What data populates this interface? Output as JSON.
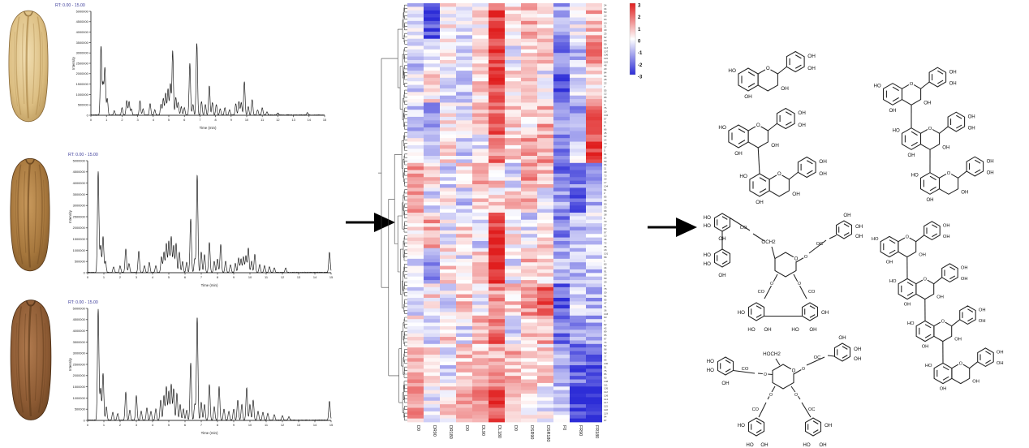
{
  "kernels": [
    {
      "label": "light-pecan-kernel",
      "base": "#f0ddb0",
      "mid": "#dcbe82",
      "dark": "#b08c4f",
      "edge": "#8a6a38"
    },
    {
      "label": "medium-pecan-kernel",
      "base": "#c99a5d",
      "mid": "#a5763c",
      "dark": "#7a5226",
      "edge": "#5d3d1c"
    },
    {
      "label": "dark-pecan-kernel",
      "base": "#b07a4e",
      "mid": "#8c5a33",
      "dark": "#66401f",
      "edge": "#4d2f16"
    }
  ],
  "arrows": {
    "color": "#000000"
  },
  "chem": {
    "labels": {
      "oh": "OH",
      "ho": "HO",
      "o": "O",
      "co": "CO",
      "oc": "OC",
      "och2": "OCH2",
      "hoch2": "HOCH2"
    }
  },
  "chart_data": [
    {
      "type": "line",
      "panel": "chromatogram-1",
      "title": "RT: 0.00 - 15.00",
      "xlabel": "Time (min)",
      "ylabel": "Intensity",
      "xlim": [
        0,
        15
      ],
      "ylim": [
        0,
        5000000
      ],
      "y_ticks": [
        0,
        500000,
        1000000,
        1500000,
        2000000,
        2500000,
        3000000,
        3500000,
        4000000,
        4500000,
        5000000
      ],
      "x_ticks": [
        0,
        1,
        2,
        3,
        4,
        5,
        6,
        7,
        8,
        9,
        10,
        11,
        12,
        13,
        14,
        15
      ],
      "peaks": [
        [
          0.65,
          3300000
        ],
        [
          0.78,
          1500000
        ],
        [
          0.9,
          2250000
        ],
        [
          1.05,
          800000
        ],
        [
          1.5,
          200000
        ],
        [
          2.0,
          350000
        ],
        [
          2.3,
          700000
        ],
        [
          2.45,
          650000
        ],
        [
          2.6,
          300000
        ],
        [
          3.15,
          680000
        ],
        [
          3.35,
          300000
        ],
        [
          3.8,
          550000
        ],
        [
          4.1,
          250000
        ],
        [
          4.5,
          520000
        ],
        [
          4.65,
          800000
        ],
        [
          4.8,
          1050000
        ],
        [
          4.95,
          1250000
        ],
        [
          5.1,
          1500000
        ],
        [
          5.25,
          3100000
        ],
        [
          5.45,
          850000
        ],
        [
          5.6,
          600000
        ],
        [
          5.8,
          400000
        ],
        [
          6.0,
          350000
        ],
        [
          6.35,
          2500000
        ],
        [
          6.55,
          500000
        ],
        [
          6.8,
          3450000
        ],
        [
          7.1,
          650000
        ],
        [
          7.35,
          500000
        ],
        [
          7.6,
          1400000
        ],
        [
          7.8,
          600000
        ],
        [
          8.05,
          500000
        ],
        [
          8.3,
          300000
        ],
        [
          8.6,
          350000
        ],
        [
          8.9,
          250000
        ],
        [
          9.3,
          550000
        ],
        [
          9.5,
          650000
        ],
        [
          9.65,
          600000
        ],
        [
          9.85,
          1600000
        ],
        [
          10.1,
          400000
        ],
        [
          10.35,
          750000
        ],
        [
          10.7,
          250000
        ],
        [
          11.0,
          350000
        ],
        [
          11.3,
          150000
        ],
        [
          12.0,
          100000
        ],
        [
          13.9,
          120000
        ]
      ]
    },
    {
      "type": "line",
      "panel": "chromatogram-2",
      "title": "RT: 0.00 - 15.00",
      "xlabel": "Time (min)",
      "ylabel": "Intensity",
      "xlim": [
        0,
        15
      ],
      "ylim": [
        0,
        5000000
      ],
      "y_ticks": [
        0,
        500000,
        1000000,
        1500000,
        2000000,
        2500000,
        3000000,
        3500000,
        4000000,
        4500000,
        5000000
      ],
      "x_ticks": [
        0,
        1,
        2,
        3,
        4,
        5,
        6,
        7,
        8,
        9,
        10,
        11,
        12,
        13,
        14,
        15
      ],
      "peaks": [
        [
          0.65,
          4500000
        ],
        [
          0.8,
          1200000
        ],
        [
          0.95,
          1600000
        ],
        [
          1.1,
          500000
        ],
        [
          1.6,
          250000
        ],
        [
          2.0,
          300000
        ],
        [
          2.35,
          1050000
        ],
        [
          2.55,
          400000
        ],
        [
          3.15,
          950000
        ],
        [
          3.5,
          300000
        ],
        [
          3.8,
          450000
        ],
        [
          4.2,
          300000
        ],
        [
          4.55,
          700000
        ],
        [
          4.7,
          900000
        ],
        [
          4.85,
          1300000
        ],
        [
          5.0,
          1400000
        ],
        [
          5.15,
          1600000
        ],
        [
          5.3,
          1200000
        ],
        [
          5.45,
          1300000
        ],
        [
          5.65,
          900000
        ],
        [
          5.85,
          500000
        ],
        [
          6.1,
          450000
        ],
        [
          6.35,
          2400000
        ],
        [
          6.6,
          600000
        ],
        [
          6.75,
          4350000
        ],
        [
          7.0,
          900000
        ],
        [
          7.2,
          800000
        ],
        [
          7.5,
          1350000
        ],
        [
          7.8,
          500000
        ],
        [
          8.0,
          600000
        ],
        [
          8.2,
          1250000
        ],
        [
          8.5,
          500000
        ],
        [
          8.8,
          350000
        ],
        [
          9.1,
          400000
        ],
        [
          9.3,
          650000
        ],
        [
          9.45,
          600000
        ],
        [
          9.6,
          700000
        ],
        [
          9.75,
          750000
        ],
        [
          9.9,
          1100000
        ],
        [
          10.1,
          500000
        ],
        [
          10.3,
          800000
        ],
        [
          10.6,
          350000
        ],
        [
          10.9,
          300000
        ],
        [
          11.2,
          250000
        ],
        [
          11.5,
          200000
        ],
        [
          12.2,
          200000
        ],
        [
          14.9,
          900000
        ]
      ]
    },
    {
      "type": "line",
      "panel": "chromatogram-3",
      "title": "RT: 0.00 - 15.00",
      "xlabel": "Time (min)",
      "ylabel": "Intensity",
      "xlim": [
        0,
        15
      ],
      "ylim": [
        0,
        5000000
      ],
      "y_ticks": [
        0,
        500000,
        1000000,
        1500000,
        2000000,
        2500000,
        3000000,
        3500000,
        4000000,
        4500000,
        5000000
      ],
      "x_ticks": [
        0,
        1,
        2,
        3,
        4,
        5,
        6,
        7,
        8,
        9,
        10,
        11,
        12,
        13,
        14,
        15
      ],
      "peaks": [
        [
          0.65,
          4950000
        ],
        [
          0.8,
          1400000
        ],
        [
          0.95,
          2100000
        ],
        [
          1.15,
          600000
        ],
        [
          1.55,
          350000
        ],
        [
          1.85,
          300000
        ],
        [
          2.35,
          1250000
        ],
        [
          2.6,
          450000
        ],
        [
          3.0,
          1100000
        ],
        [
          3.3,
          400000
        ],
        [
          3.65,
          550000
        ],
        [
          3.9,
          400000
        ],
        [
          4.2,
          500000
        ],
        [
          4.5,
          900000
        ],
        [
          4.7,
          1100000
        ],
        [
          4.85,
          1500000
        ],
        [
          5.0,
          1300000
        ],
        [
          5.15,
          1600000
        ],
        [
          5.3,
          1400000
        ],
        [
          5.5,
          1200000
        ],
        [
          5.7,
          700000
        ],
        [
          5.9,
          500000
        ],
        [
          6.1,
          450000
        ],
        [
          6.35,
          2550000
        ],
        [
          6.6,
          700000
        ],
        [
          6.75,
          4600000
        ],
        [
          7.0,
          800000
        ],
        [
          7.2,
          700000
        ],
        [
          7.5,
          1600000
        ],
        [
          7.8,
          600000
        ],
        [
          8.1,
          1500000
        ],
        [
          8.4,
          500000
        ],
        [
          8.7,
          400000
        ],
        [
          9.0,
          500000
        ],
        [
          9.25,
          900000
        ],
        [
          9.5,
          700000
        ],
        [
          9.8,
          1450000
        ],
        [
          10.0,
          700000
        ],
        [
          10.2,
          900000
        ],
        [
          10.5,
          400000
        ],
        [
          10.8,
          350000
        ],
        [
          11.1,
          300000
        ],
        [
          11.5,
          250000
        ],
        [
          12.0,
          200000
        ],
        [
          12.4,
          150000
        ],
        [
          14.9,
          850000
        ]
      ]
    },
    {
      "type": "heatmap",
      "panel": "clustered-heatmap",
      "columns": [
        "D0",
        "DR90",
        "DR180",
        "D0",
        "DL90",
        "DL180",
        "D0",
        "DSR90",
        "DSR180",
        "F0",
        "FR90",
        "FR180"
      ],
      "legend_ticks": [
        "3",
        "2",
        "1",
        "0",
        "-1",
        "-2",
        "-3"
      ],
      "zlim": [
        -3,
        3
      ],
      "color_positive": "#e01e1e",
      "color_zero": "#ffffff",
      "color_negative": "#2d2dd7",
      "noise": 0.85,
      "seed": 1234,
      "dendrogram_seed": 7,
      "row_blocks": [
        {
          "count": 10,
          "profile": [
            -0.6,
            -2.6,
            0.2,
            -0.5,
            0.3,
            2.3,
            0.4,
            0.9,
            0.6,
            -1.3,
            -0.4,
            0.9
          ]
        },
        {
          "count": 8,
          "profile": [
            -0.7,
            -0.4,
            0.5,
            -0.5,
            0.4,
            2.7,
            -0.2,
            0.7,
            1.0,
            -1.9,
            -0.9,
            1.6
          ]
        },
        {
          "count": 10,
          "profile": [
            -0.5,
            0.3,
            -0.4,
            -0.6,
            0.5,
            2.5,
            0.3,
            0.8,
            -0.3,
            -2.5,
            -0.7,
            0.5
          ]
        },
        {
          "count": 9,
          "profile": [
            -0.9,
            -1.3,
            0.3,
            -0.4,
            0.6,
            2.1,
            0.5,
            0.4,
            1.1,
            -1.0,
            -1.3,
            1.9
          ]
        },
        {
          "count": 8,
          "profile": [
            -0.4,
            -0.3,
            0.4,
            -0.7,
            -0.2,
            1.7,
            0.6,
            1.1,
            1.3,
            -1.6,
            -0.6,
            2.5
          ]
        },
        {
          "count": 7,
          "profile": [
            1.3,
            0.9,
            -0.5,
            0.7,
            0.9,
            0.6,
            -0.4,
            1.3,
            0.9,
            -1.9,
            -1.6,
            -1.3
          ]
        },
        {
          "count": 7,
          "profile": [
            1.6,
            -0.5,
            0.4,
            -0.8,
            0.5,
            0.4,
            0.7,
            1.0,
            -0.3,
            -1.3,
            -2.3,
            -0.9
          ]
        },
        {
          "count": 10,
          "profile": [
            0.5,
            1.1,
            -0.3,
            0.4,
            -0.5,
            2.7,
            0.3,
            -0.5,
            0.7,
            -1.6,
            -0.9,
            -0.6
          ]
        },
        {
          "count": 10,
          "profile": [
            -0.4,
            -1.6,
            0.5,
            -0.3,
            0.6,
            2.9,
            -0.3,
            0.9,
            0.4,
            -0.9,
            -1.1,
            -0.7
          ]
        },
        {
          "count": 9,
          "profile": [
            -0.6,
            0.4,
            -0.5,
            0.6,
            -0.3,
            1.3,
            0.7,
            1.5,
            2.1,
            -2.3,
            -0.7,
            -1.0
          ]
        },
        {
          "count": 8,
          "profile": [
            0.4,
            -0.9,
            0.6,
            -0.4,
            0.9,
            1.9,
            -0.5,
            0.7,
            1.1,
            -1.9,
            -1.5,
            -1.1
          ]
        },
        {
          "count": 12,
          "profile": [
            0.9,
            0.6,
            -0.6,
            0.7,
            0.5,
            1.1,
            0.9,
            0.7,
            0.5,
            -1.3,
            -2.1,
            -2.5
          ]
        },
        {
          "count": 10,
          "profile": [
            1.1,
            -0.4,
            0.5,
            0.9,
            1.3,
            2.3,
            1.0,
            0.4,
            -0.2,
            -0.6,
            -2.7,
            -2.9
          ]
        }
      ],
      "row_labels": [
        24,
        34,
        50,
        23,
        63,
        10,
        21,
        40,
        25,
        62,
        20,
        99,
        113,
        107,
        106,
        116,
        110,
        48,
        29,
        84,
        64,
        28,
        22,
        7,
        55,
        12,
        88,
        41,
        3,
        76,
        19,
        102,
        57,
        31,
        8,
        66,
        45,
        92,
        14,
        70,
        37,
        5,
        81,
        26,
        59,
        96,
        11,
        49,
        73,
        33,
        17,
        104,
        61,
        2,
        85,
        43,
        90,
        15,
        68,
        38,
        6,
        79,
        27,
        53,
        97,
        13,
        46,
        72,
        35,
        18,
        101,
        58,
        1,
        83,
        44,
        91,
        16,
        69,
        39,
        9,
        78,
        30,
        54,
        95,
        47,
        71,
        36,
        103,
        60,
        4,
        82,
        42,
        89,
        65,
        67,
        74,
        52,
        98,
        32,
        77,
        56,
        100,
        51,
        75,
        86,
        93,
        108,
        111,
        105,
        112,
        109,
        114,
        117,
        115,
        118,
        119,
        94,
        87
      ]
    }
  ]
}
